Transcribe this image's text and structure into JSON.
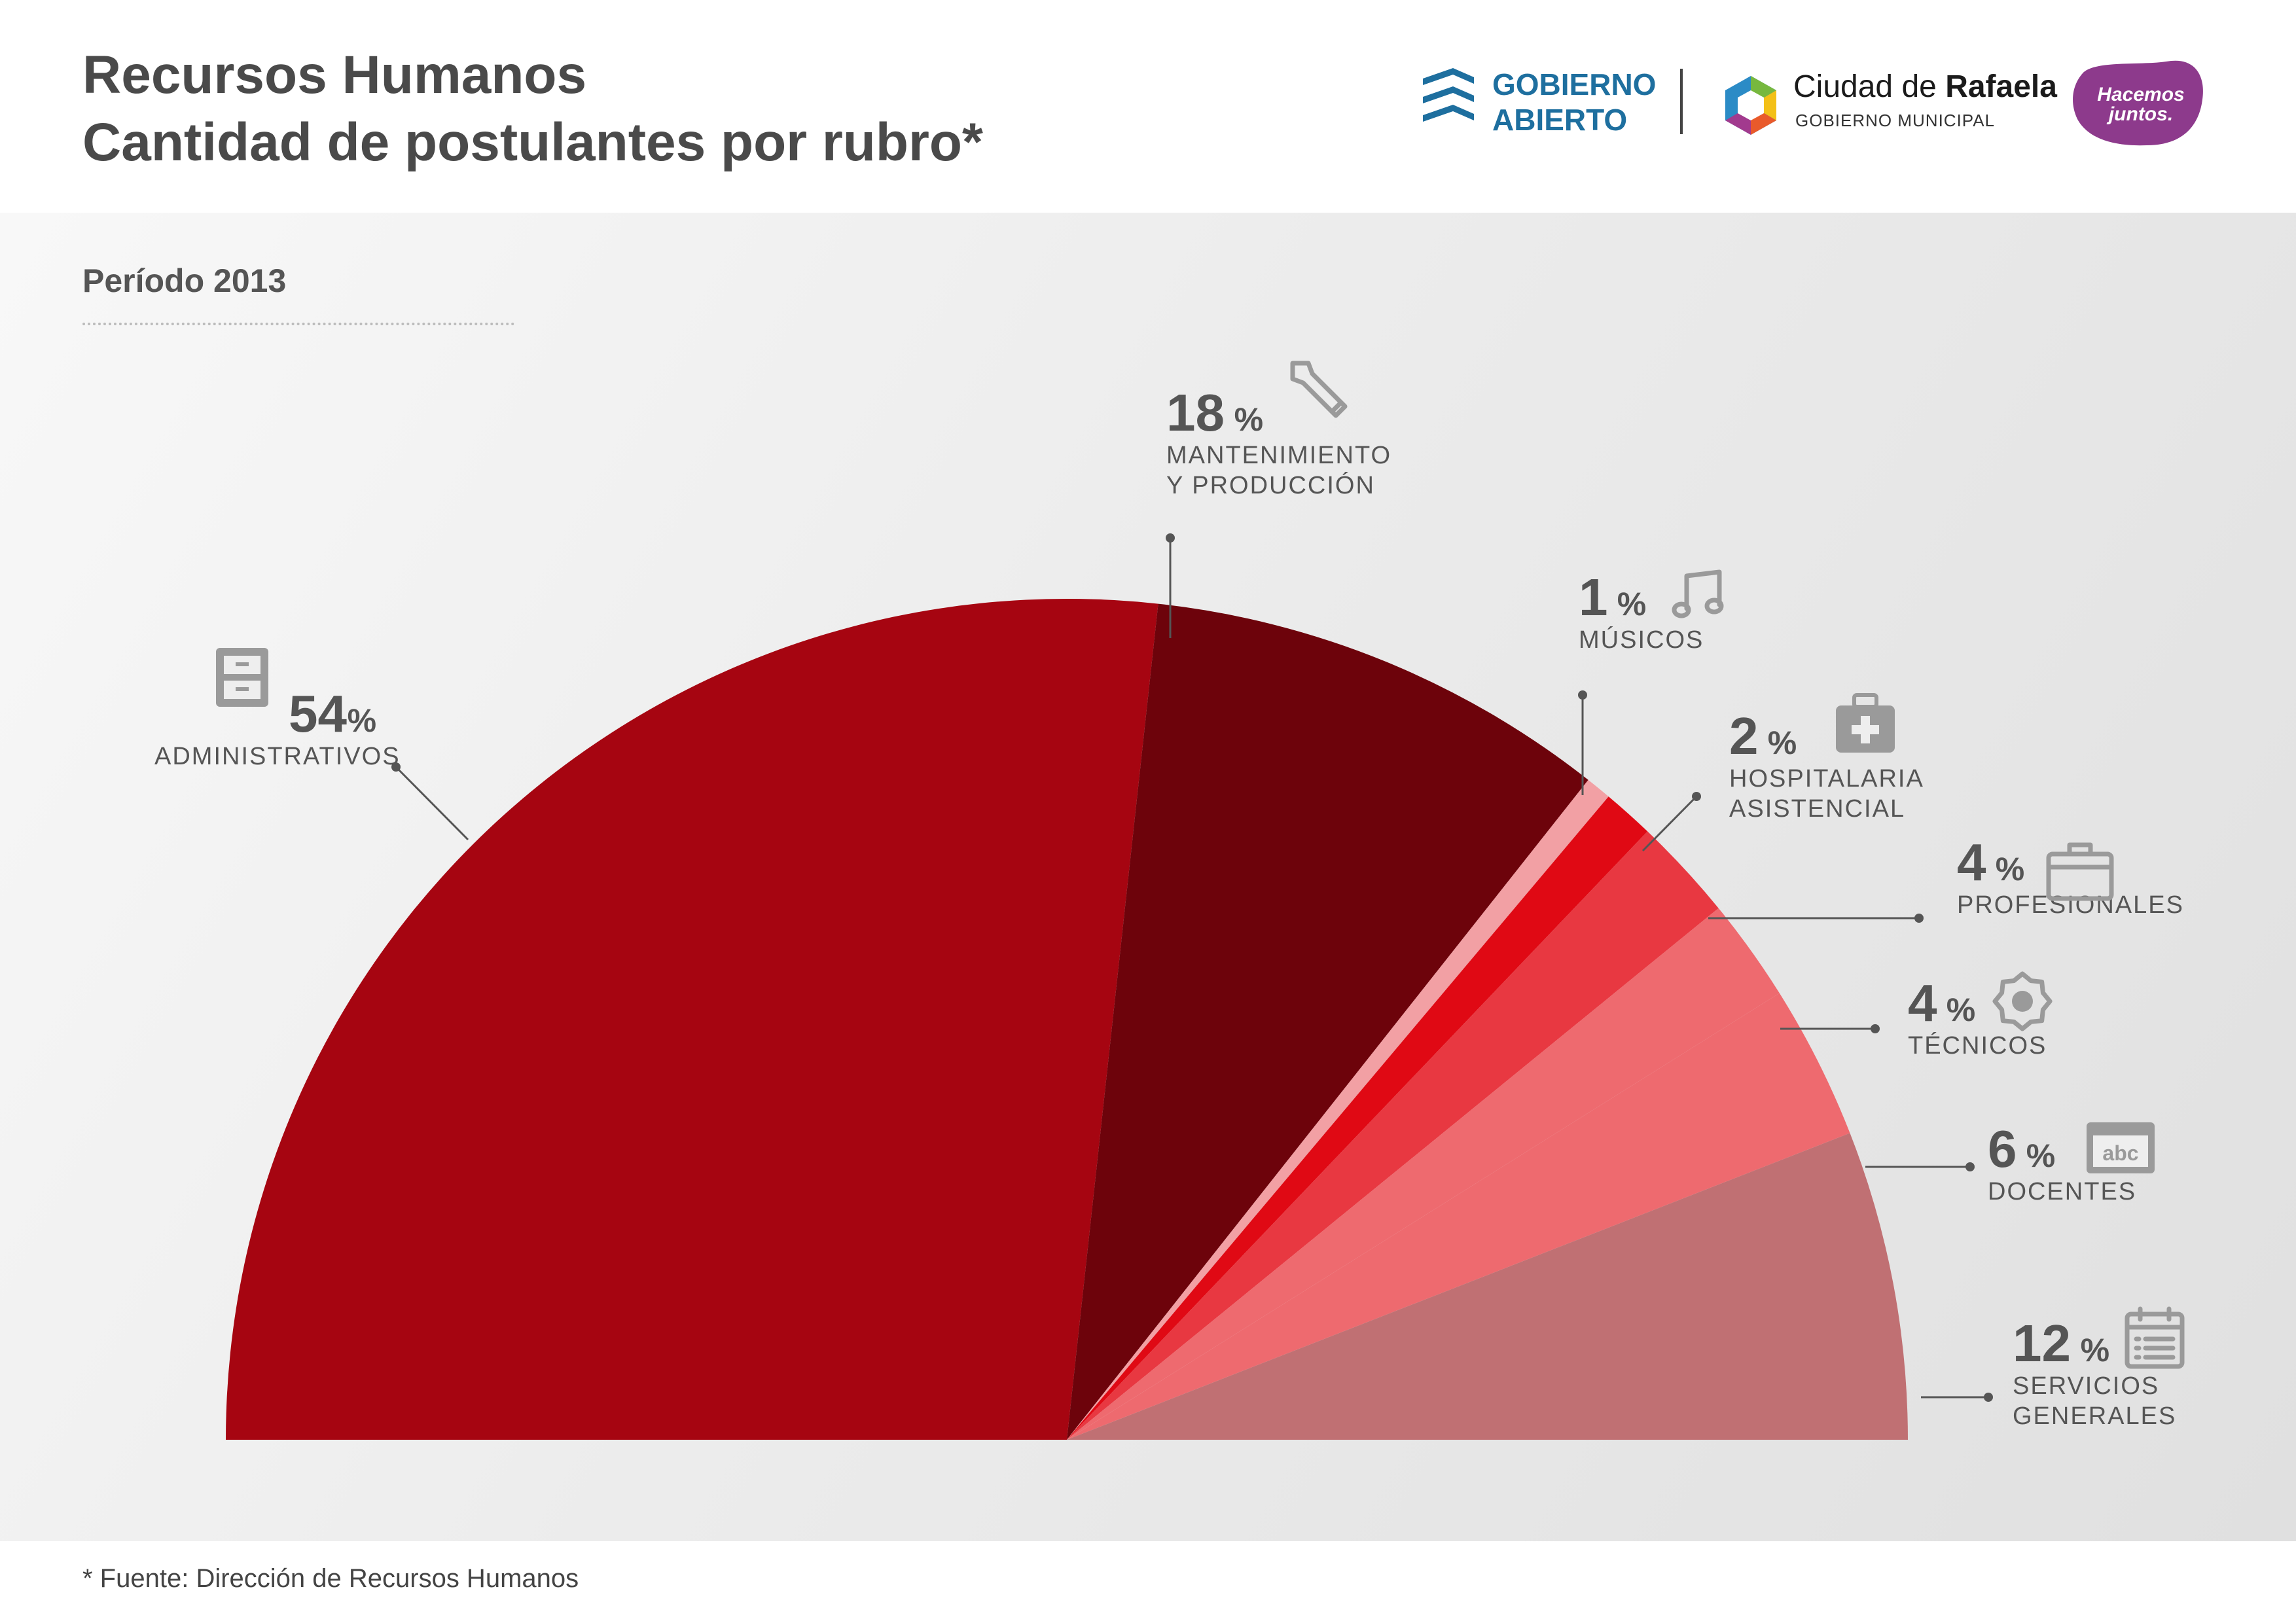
{
  "header": {
    "title": "Recursos Humanos",
    "subtitle": "Cantidad de postulantes por rubro*"
  },
  "logos": {
    "gobierno_abierto": [
      "GOBIERNO",
      "ABIERTO"
    ],
    "ciudad_name_prefix": "Ciudad de",
    "ciudad_name_bold": "Rafaela",
    "ciudad_sub": "GOBIERNO MUNICIPAL",
    "hacemos": [
      "Hacemos",
      "juntos."
    ]
  },
  "period": "Período 2013",
  "footnote": "* Fuente: Dirección de Recursos Humanos",
  "chart_data": {
    "type": "pie",
    "shape": "half-donut (semicircle)",
    "unit": "%",
    "slices": [
      {
        "label": "ADMINISTRATIVOS",
        "value": 54,
        "color": "#a60511",
        "icon": "filing-cabinet-icon"
      },
      {
        "label": "MANTENIMIENTO Y PRODUCCIÓN",
        "value": 18,
        "color": "#6d030b",
        "icon": "wrench-icon"
      },
      {
        "label": "MÚSICOS",
        "value": 1,
        "color": "#f2a0a4",
        "icon": "music-note-icon"
      },
      {
        "label": "HOSPITALARIA ASISTENCIAL",
        "value": 2,
        "color": "#e00914",
        "icon": "first-aid-kit-icon"
      },
      {
        "label": "PROFESIONALES",
        "value": 4,
        "color": "#e83841",
        "icon": "briefcase-icon"
      },
      {
        "label": "TÉCNICOS",
        "value": 4,
        "color": "#ee6a6f",
        "icon": "gear-icon"
      },
      {
        "label": "DOCENTES",
        "value": 6,
        "color": "#ee6a6f",
        "icon": "abc-board-icon"
      },
      {
        "label": "SERVICIOS GENERALES",
        "value": 12,
        "color": "#c07073",
        "icon": "calendar-list-icon"
      }
    ],
    "label_color": "#555555",
    "icon_color": "#9a9a9a"
  }
}
